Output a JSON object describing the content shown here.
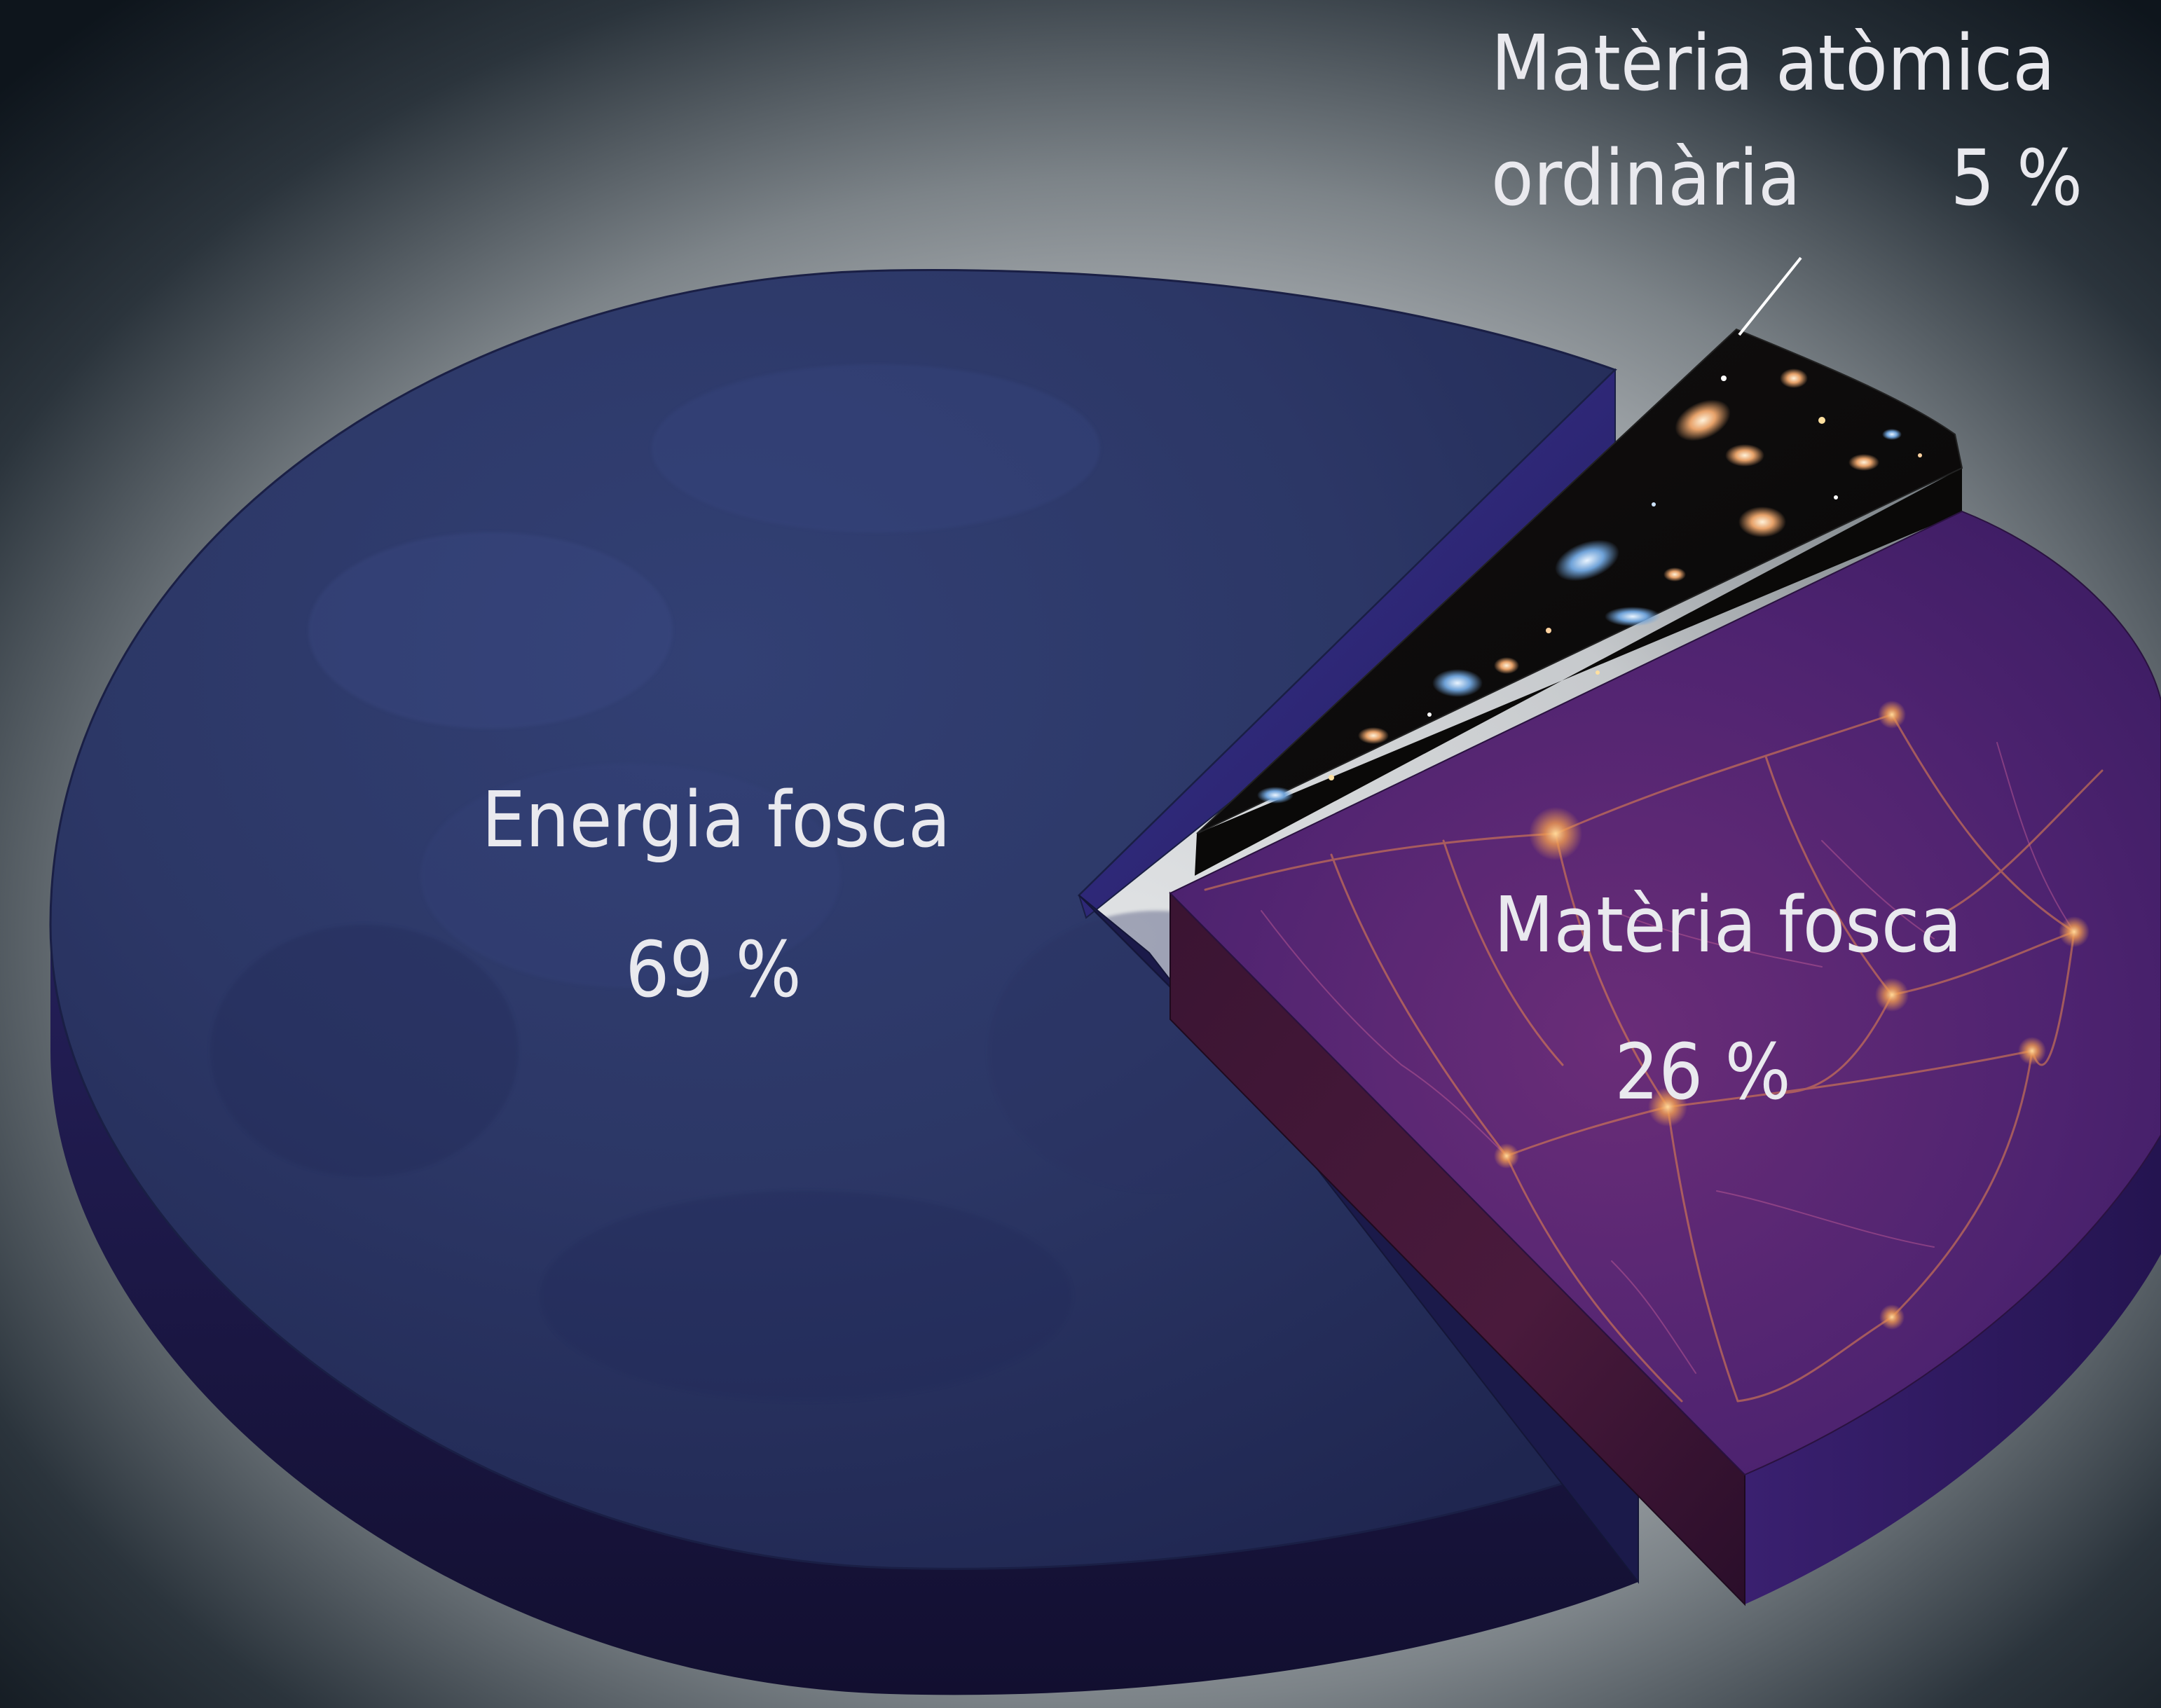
{
  "chart_data": {
    "type": "pie",
    "title": "",
    "slices": [
      {
        "label": "Energia fosca",
        "value": 69,
        "value_text": "69 %",
        "color": "#2b3566",
        "texture": "mottled-dark-blue"
      },
      {
        "label": "Matèria fosca",
        "value": 26,
        "value_text": "26 %",
        "color": "#4a2268",
        "texture": "cosmic-web-filaments"
      },
      {
        "label_lines": [
          "Matèria atòmica",
          "ordinària"
        ],
        "value": 5,
        "value_text": "5 %",
        "color": "#0d0b0a",
        "texture": "galaxy-field"
      }
    ],
    "style": "3d-exploded-pie",
    "legend": "none"
  },
  "colors": {
    "background_center": "#d7dadc",
    "background_edge": "#101820",
    "label_text": "#e9e9ee",
    "filament": "#f29a52",
    "pie_edge": "#1a1f45"
  }
}
